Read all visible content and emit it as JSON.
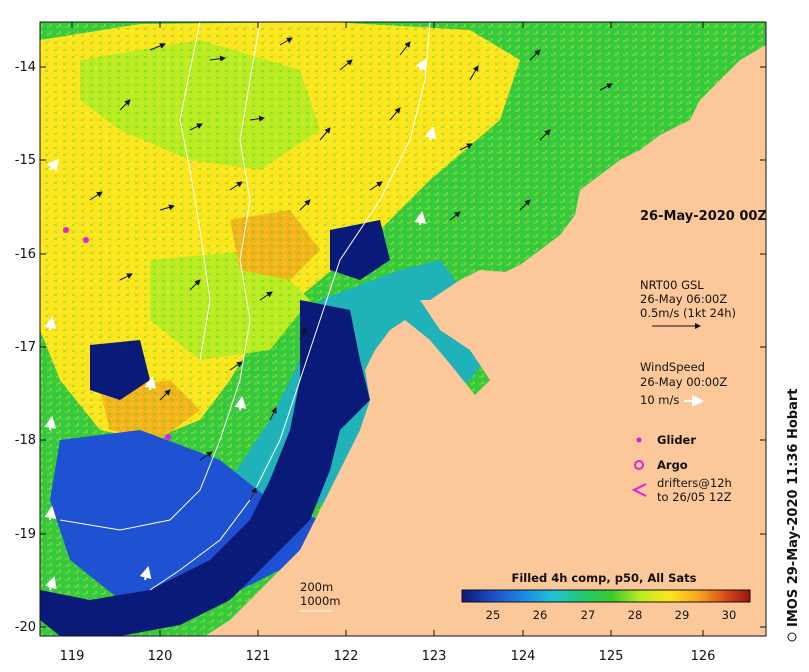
{
  "map": {
    "date_label": "26-May-2020 00Z",
    "lat_ticks": [
      "-14",
      "-15",
      "-16",
      "-17",
      "-18",
      "-19",
      "-20"
    ],
    "lon_ticks": [
      "119",
      "120",
      "121",
      "122",
      "123",
      "124",
      "125",
      "126"
    ],
    "colors": {
      "land": "#fcc899",
      "deep": "#0a1a78",
      "cool": "#1f52d2",
      "teal": "#1fb2b8",
      "green": "#2ecb3a",
      "lime": "#b9ec22",
      "yellow": "#ffe61e"
    }
  },
  "legend": {
    "gsl": {
      "title": "NRT00 GSL",
      "time": "26-May 06:00Z",
      "scale": "0.5m/s (1kt 24h)"
    },
    "wind": {
      "title": "WindSpeed",
      "time": "26-May 00:00Z",
      "scale": "10 m/s"
    },
    "glider": "Glider",
    "argo": "Argo",
    "drifters": [
      "drifters@12h",
      "to 26/05 12Z"
    ],
    "bathy": [
      "200m",
      "1000m"
    ]
  },
  "colorbar": {
    "title": "Filled 4h comp, p50, All Sats",
    "ticks": [
      "25",
      "26",
      "27",
      "28",
      "29",
      "30"
    ]
  },
  "credit": "IMOS 29-May-2020 11:36 Hobart"
}
